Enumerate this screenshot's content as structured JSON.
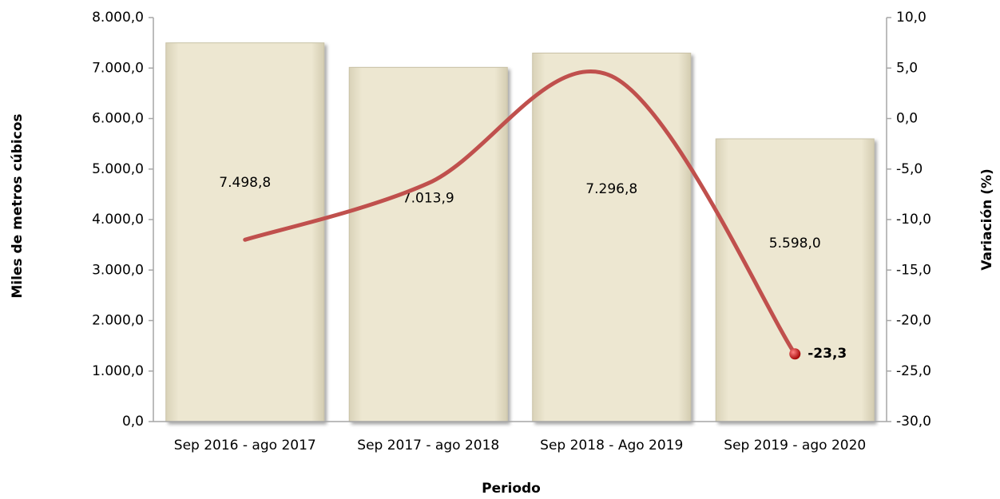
{
  "chart_data": {
    "type": "bar_line",
    "x_label": "Periodo",
    "y_label": "Miles de metros cúbicos",
    "y2_label": "Variación (%)",
    "categories": [
      "Sep 2016 - ago 2017",
      "Sep 2017 - ago 2018",
      "Sep 2018 - Ago 2019",
      "Sep 2019 - ago 2020"
    ],
    "series": [
      {
        "name": "Miles de metros cúbicos",
        "type": "bar",
        "color": "#ede7d1",
        "values": [
          7498.8,
          7013.9,
          7296.8,
          5598.0
        ],
        "value_labels": [
          "7.498,8",
          "7.013,9",
          "7.296,8",
          "5.598,0"
        ]
      },
      {
        "name": "Variación (%)",
        "type": "line",
        "axis": "y2",
        "color": "#c0504d",
        "values": [
          -12.0,
          -6.4,
          4.2,
          -23.3
        ],
        "value_labels": [
          null,
          null,
          null,
          "-23,3"
        ]
      }
    ],
    "ylim": [
      0,
      8000
    ],
    "yticks": [
      {
        "value": 0,
        "label": "0,0"
      },
      {
        "value": 1000,
        "label": "1.000,0"
      },
      {
        "value": 2000,
        "label": "2.000,0"
      },
      {
        "value": 3000,
        "label": "3.000,0"
      },
      {
        "value": 4000,
        "label": "4.000,0"
      },
      {
        "value": 5000,
        "label": "5.000,0"
      },
      {
        "value": 6000,
        "label": "6.000,0"
      },
      {
        "value": 7000,
        "label": "7.000,0"
      },
      {
        "value": 8000,
        "label": "8.000,0"
      }
    ],
    "y2lim": [
      -30,
      10
    ],
    "y2ticks": [
      {
        "value": -30,
        "label": "-30,0"
      },
      {
        "value": -25,
        "label": "-25,0"
      },
      {
        "value": -20,
        "label": "-20,0"
      },
      {
        "value": -15,
        "label": "-15,0"
      },
      {
        "value": -10,
        "label": "-10,0"
      },
      {
        "value": -5,
        "label": "-5,0"
      },
      {
        "value": 0,
        "label": "0,0"
      },
      {
        "value": 5,
        "label": "5,0"
      },
      {
        "value": 10,
        "label": "10,0"
      }
    ],
    "grid": false
  }
}
